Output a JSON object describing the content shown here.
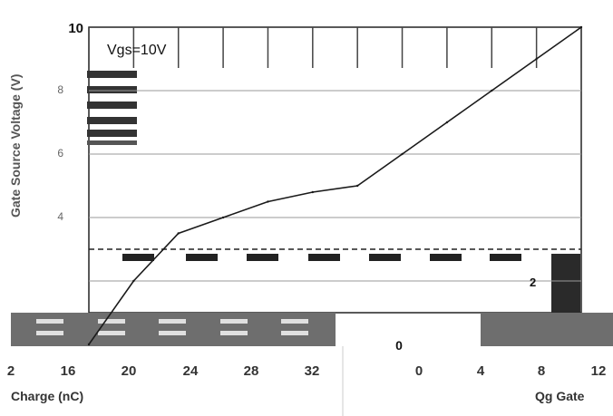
{
  "chart_data": {
    "type": "line",
    "series": [
      {
        "name": "",
        "color": "#1a1a1a",
        "x": [
          0,
          4,
          8,
          12,
          16,
          20,
          24,
          28,
          32,
          36,
          40,
          44
        ],
        "y": [
          0,
          2.0,
          3.5,
          4.0,
          4.5,
          4.8,
          5.0,
          6.0,
          7.0,
          8.0,
          9.0,
          10.0
        ]
      }
    ],
    "annotation": "Vgs=10V",
    "ytick_labels": [
      "10",
      "8",
      "6",
      "4",
      "2",
      "0"
    ],
    "xtick_labels_left": [
      "2",
      "16",
      "20",
      "24",
      "28",
      "32"
    ],
    "xtick_labels_right": [
      "0",
      "4",
      "8",
      "12"
    ],
    "xlabel_left": "Charge (nC)",
    "xlabel_right": "Qg Gate",
    "ylabel": "Gate Source Voltage (V)",
    "ylim": [
      0,
      10
    ],
    "grid": true
  }
}
